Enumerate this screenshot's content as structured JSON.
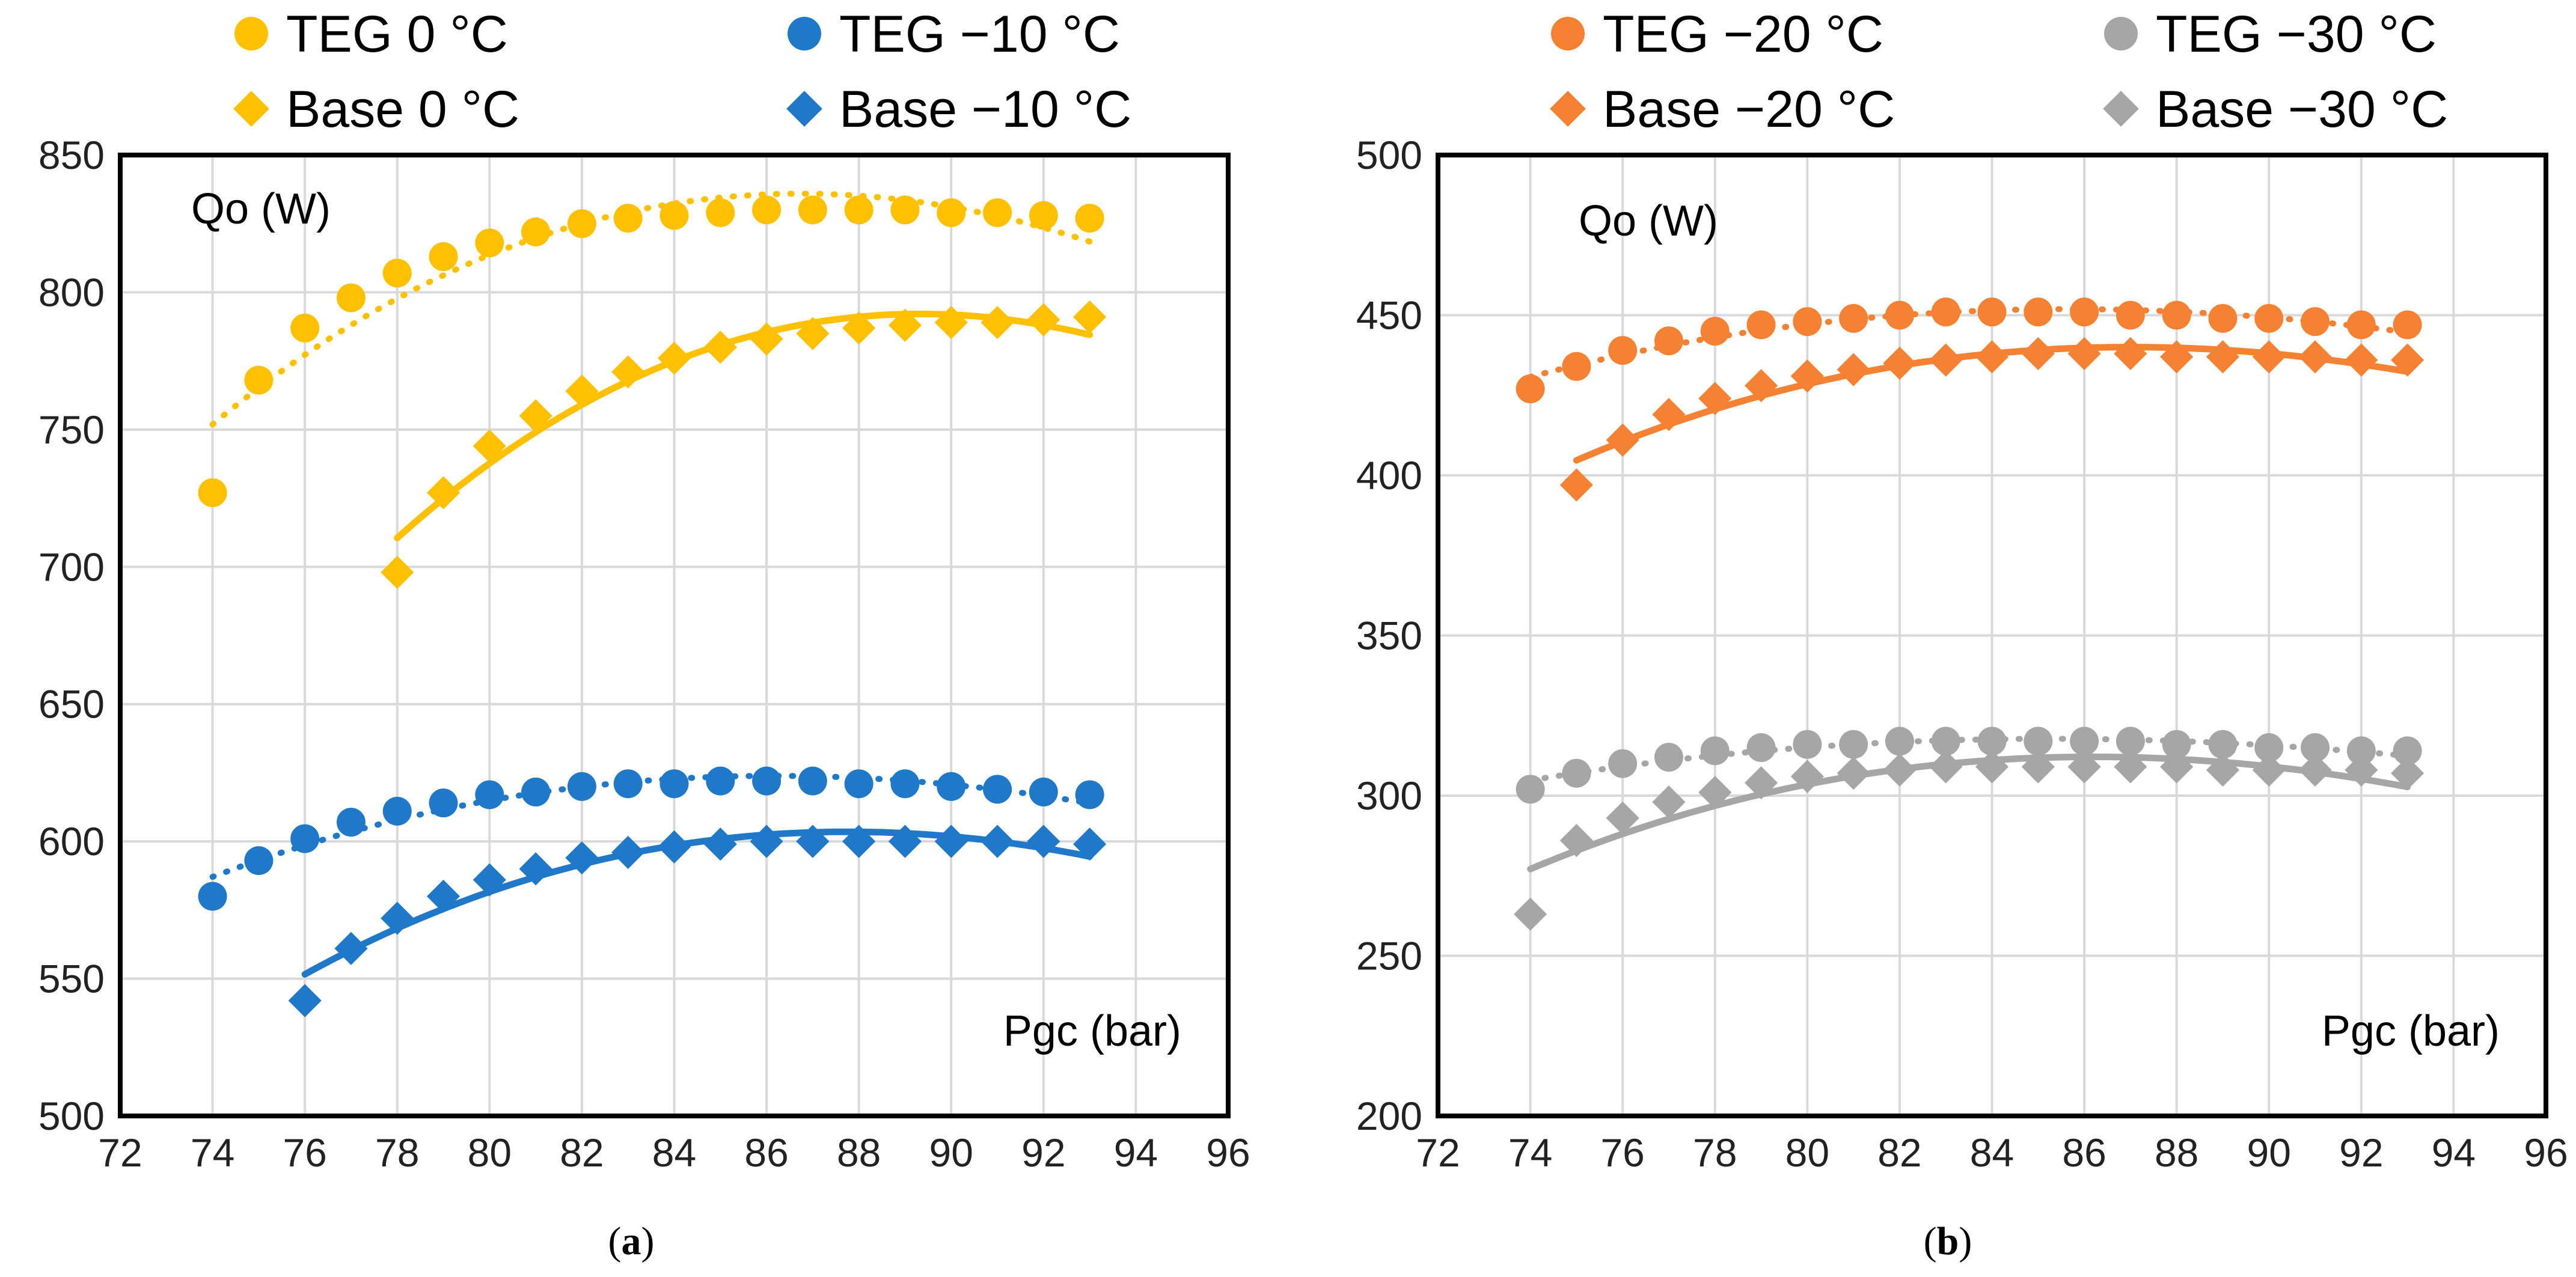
{
  "chart_data": [
    {
      "id": "a",
      "type": "scatter",
      "caption_label": "a",
      "xlabel": "Pgc (bar)",
      "ylabel": "Qo (W)",
      "xlim": [
        72,
        96
      ],
      "ylim": [
        500,
        850
      ],
      "xticks": [
        72,
        74,
        76,
        78,
        80,
        82,
        84,
        86,
        88,
        90,
        92,
        94,
        96
      ],
      "yticks": [
        500,
        550,
        600,
        650,
        700,
        750,
        800,
        850
      ],
      "grid": true,
      "legend_position": "top",
      "series": [
        {
          "name": "TEG 0 °C",
          "color": "#FFC000",
          "marker": "circle",
          "trend": "dotted",
          "trend_start": 74,
          "x": [
            74,
            75,
            76,
            77,
            78,
            79,
            80,
            81,
            82,
            83,
            84,
            85,
            86,
            87,
            88,
            89,
            90,
            91,
            92,
            93
          ],
          "y": [
            727,
            768,
            787,
            798,
            807,
            813,
            818,
            822,
            825,
            827,
            828,
            829,
            830,
            830,
            830,
            830,
            829,
            829,
            828,
            827
          ]
        },
        {
          "name": "TEG −10 °C",
          "color": "#1F78C8",
          "marker": "circle",
          "trend": "dotted",
          "trend_start": 74,
          "x": [
            74,
            75,
            76,
            77,
            78,
            79,
            80,
            81,
            82,
            83,
            84,
            85,
            86,
            87,
            88,
            89,
            90,
            91,
            92,
            93
          ],
          "y": [
            580,
            593,
            601,
            607,
            611,
            614,
            617,
            618,
            620,
            621,
            621,
            622,
            622,
            622,
            621,
            621,
            620,
            619,
            618,
            617
          ]
        },
        {
          "name": "Base 0 °C",
          "color": "#FFC000",
          "marker": "diamond",
          "trend": "solid",
          "trend_start": 78,
          "x": [
            78,
            79,
            80,
            81,
            82,
            83,
            84,
            85,
            86,
            87,
            88,
            89,
            90,
            91,
            92,
            93
          ],
          "y": [
            698,
            727,
            744,
            755,
            764,
            771,
            776,
            780,
            783,
            785,
            787,
            788,
            789,
            789,
            790,
            791
          ]
        },
        {
          "name": "Base −10 °C",
          "color": "#1F78C8",
          "marker": "diamond",
          "trend": "solid",
          "trend_start": 76,
          "x": [
            76,
            77,
            78,
            79,
            80,
            81,
            82,
            83,
            84,
            85,
            86,
            87,
            88,
            89,
            90,
            91,
            92,
            93
          ],
          "y": [
            542,
            561,
            572,
            580,
            586,
            590,
            594,
            596,
            598,
            599,
            600,
            600,
            600,
            600,
            600,
            600,
            600,
            599
          ]
        }
      ]
    },
    {
      "id": "b",
      "type": "scatter",
      "caption_label": "b",
      "xlabel": "Pgc (bar)",
      "ylabel": "Qo (W)",
      "xlim": [
        72,
        96
      ],
      "ylim": [
        200,
        500
      ],
      "xticks": [
        72,
        74,
        76,
        78,
        80,
        82,
        84,
        86,
        88,
        90,
        92,
        94,
        96
      ],
      "yticks": [
        200,
        250,
        300,
        350,
        400,
        450,
        500
      ],
      "grid": true,
      "legend_position": "top",
      "series": [
        {
          "name": "TEG −20 °C",
          "color": "#F58232",
          "marker": "circle",
          "trend": "dotted",
          "trend_start": 74,
          "x": [
            74,
            75,
            76,
            77,
            78,
            79,
            80,
            81,
            82,
            83,
            84,
            85,
            86,
            87,
            88,
            89,
            90,
            91,
            92,
            93
          ],
          "y": [
            427,
            434,
            439,
            442,
            445,
            447,
            448,
            449,
            450,
            451,
            451,
            451,
            451,
            450,
            450,
            449,
            449,
            448,
            447,
            447
          ]
        },
        {
          "name": "TEG −30 °C",
          "color": "#A6A6A6",
          "marker": "circle",
          "trend": "dotted",
          "trend_start": 74,
          "x": [
            74,
            75,
            76,
            77,
            78,
            79,
            80,
            81,
            82,
            83,
            84,
            85,
            86,
            87,
            88,
            89,
            90,
            91,
            92,
            93
          ],
          "y": [
            302,
            307,
            310,
            312,
            314,
            315,
            316,
            316,
            317,
            317,
            317,
            317,
            317,
            317,
            316,
            316,
            315,
            315,
            314,
            314
          ]
        },
        {
          "name": "Base −20 °C",
          "color": "#F58232",
          "marker": "diamond",
          "trend": "solid",
          "trend_start": 75,
          "x": [
            75,
            76,
            77,
            78,
            79,
            80,
            81,
            82,
            83,
            84,
            85,
            86,
            87,
            88,
            89,
            90,
            91,
            92,
            93
          ],
          "y": [
            397,
            411,
            419,
            424,
            428,
            431,
            433,
            435,
            436,
            437,
            438,
            438,
            438,
            437,
            437,
            437,
            437,
            436,
            436
          ]
        },
        {
          "name": "Base −30 °C",
          "color": "#A6A6A6",
          "marker": "diamond",
          "trend": "solid",
          "trend_start": 74,
          "x": [
            74,
            75,
            76,
            77,
            78,
            79,
            80,
            81,
            82,
            83,
            84,
            85,
            86,
            87,
            88,
            89,
            90,
            91,
            92,
            93
          ],
          "y": [
            263,
            286,
            293,
            298,
            301,
            304,
            306,
            307,
            308,
            309,
            309,
            309,
            309,
            309,
            309,
            308,
            308,
            308,
            308,
            307
          ]
        }
      ]
    }
  ]
}
